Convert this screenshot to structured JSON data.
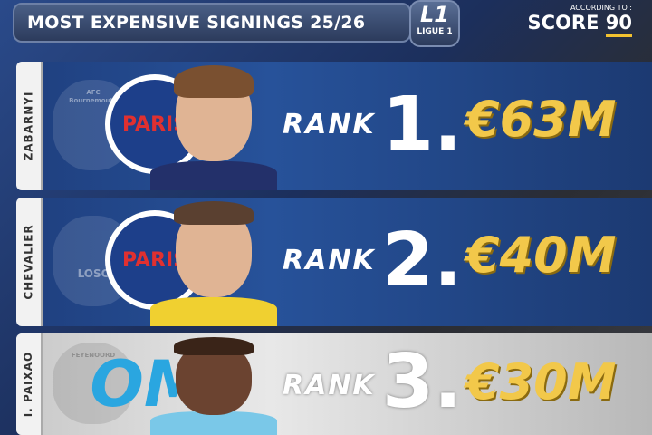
{
  "header": {
    "title": "MOST EXPENSIVE SIGNINGS 25/26",
    "league_logo": "L1",
    "league_name": "LIGUE 1",
    "source_label": "ACCORDING TO :",
    "source_brand": "SCORE",
    "source_number": "90"
  },
  "colors": {
    "card_blue": "#27529a",
    "card_silver": "#e8e8e8",
    "price_gold": "#f2c84a"
  },
  "signings": [
    {
      "name": "ZABARNYI",
      "rank_label": "RANK",
      "rank": "1.",
      "fee": "€63M",
      "old_club": "AFC Bournemouth",
      "new_club": "PARIS"
    },
    {
      "name": "CHEVALIER",
      "rank_label": "RANK",
      "rank": "2.",
      "fee": "€40M",
      "old_club": "LOSC",
      "new_club": "PARIS"
    },
    {
      "name": "I. PAIXAO",
      "rank_label": "RANK",
      "rank": "3.",
      "fee": "€30M",
      "old_club": "FEYENOORD",
      "new_club": "OM"
    }
  ]
}
